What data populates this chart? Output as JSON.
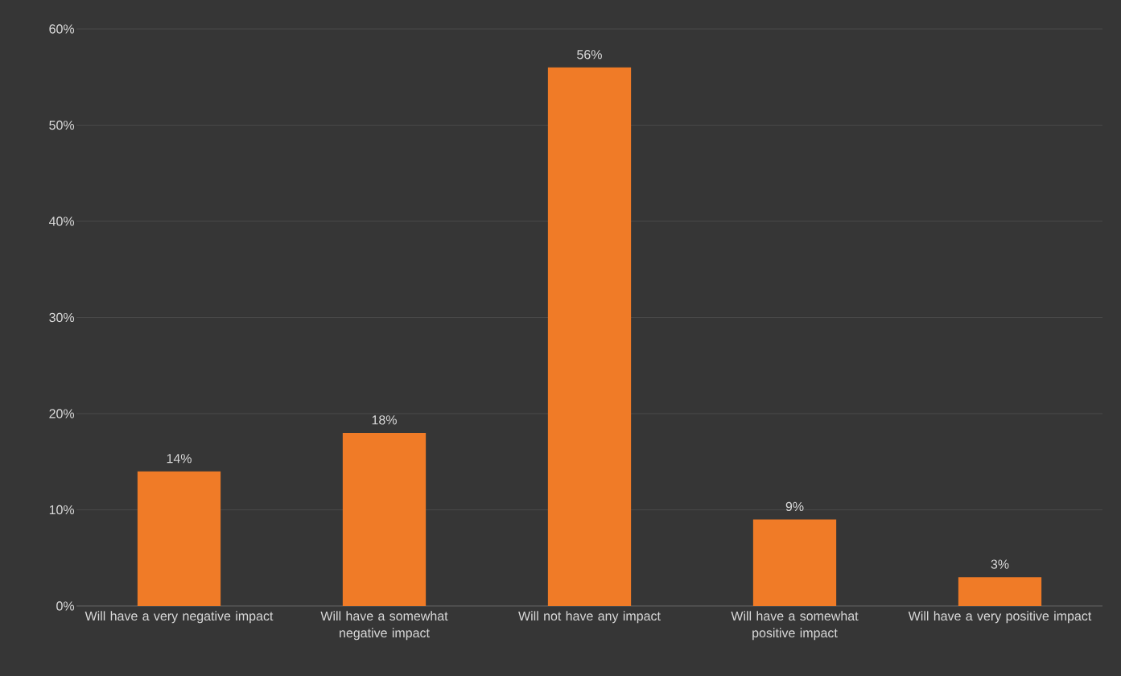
{
  "chart_data": {
    "type": "bar",
    "categories": [
      "Will have a very negative impact",
      "Will have a somewhat negative impact",
      "Will not have any impact",
      "Will have a somewhat positive impact",
      "Will have a very positive impact"
    ],
    "values": [
      14,
      18,
      56,
      9,
      3
    ],
    "value_labels": [
      "14%",
      "18%",
      "56%",
      "9%",
      "3%"
    ],
    "color": "#f07b27",
    "ylim": [
      0,
      60
    ],
    "yticks": [
      {
        "value": 0,
        "label": "0%"
      },
      {
        "value": 10,
        "label": "10%"
      },
      {
        "value": 20,
        "label": "20%"
      },
      {
        "value": 30,
        "label": "30%"
      },
      {
        "value": 40,
        "label": "40%"
      },
      {
        "value": 50,
        "label": "50%"
      },
      {
        "value": 60,
        "label": "60%"
      }
    ],
    "grid": "y"
  }
}
